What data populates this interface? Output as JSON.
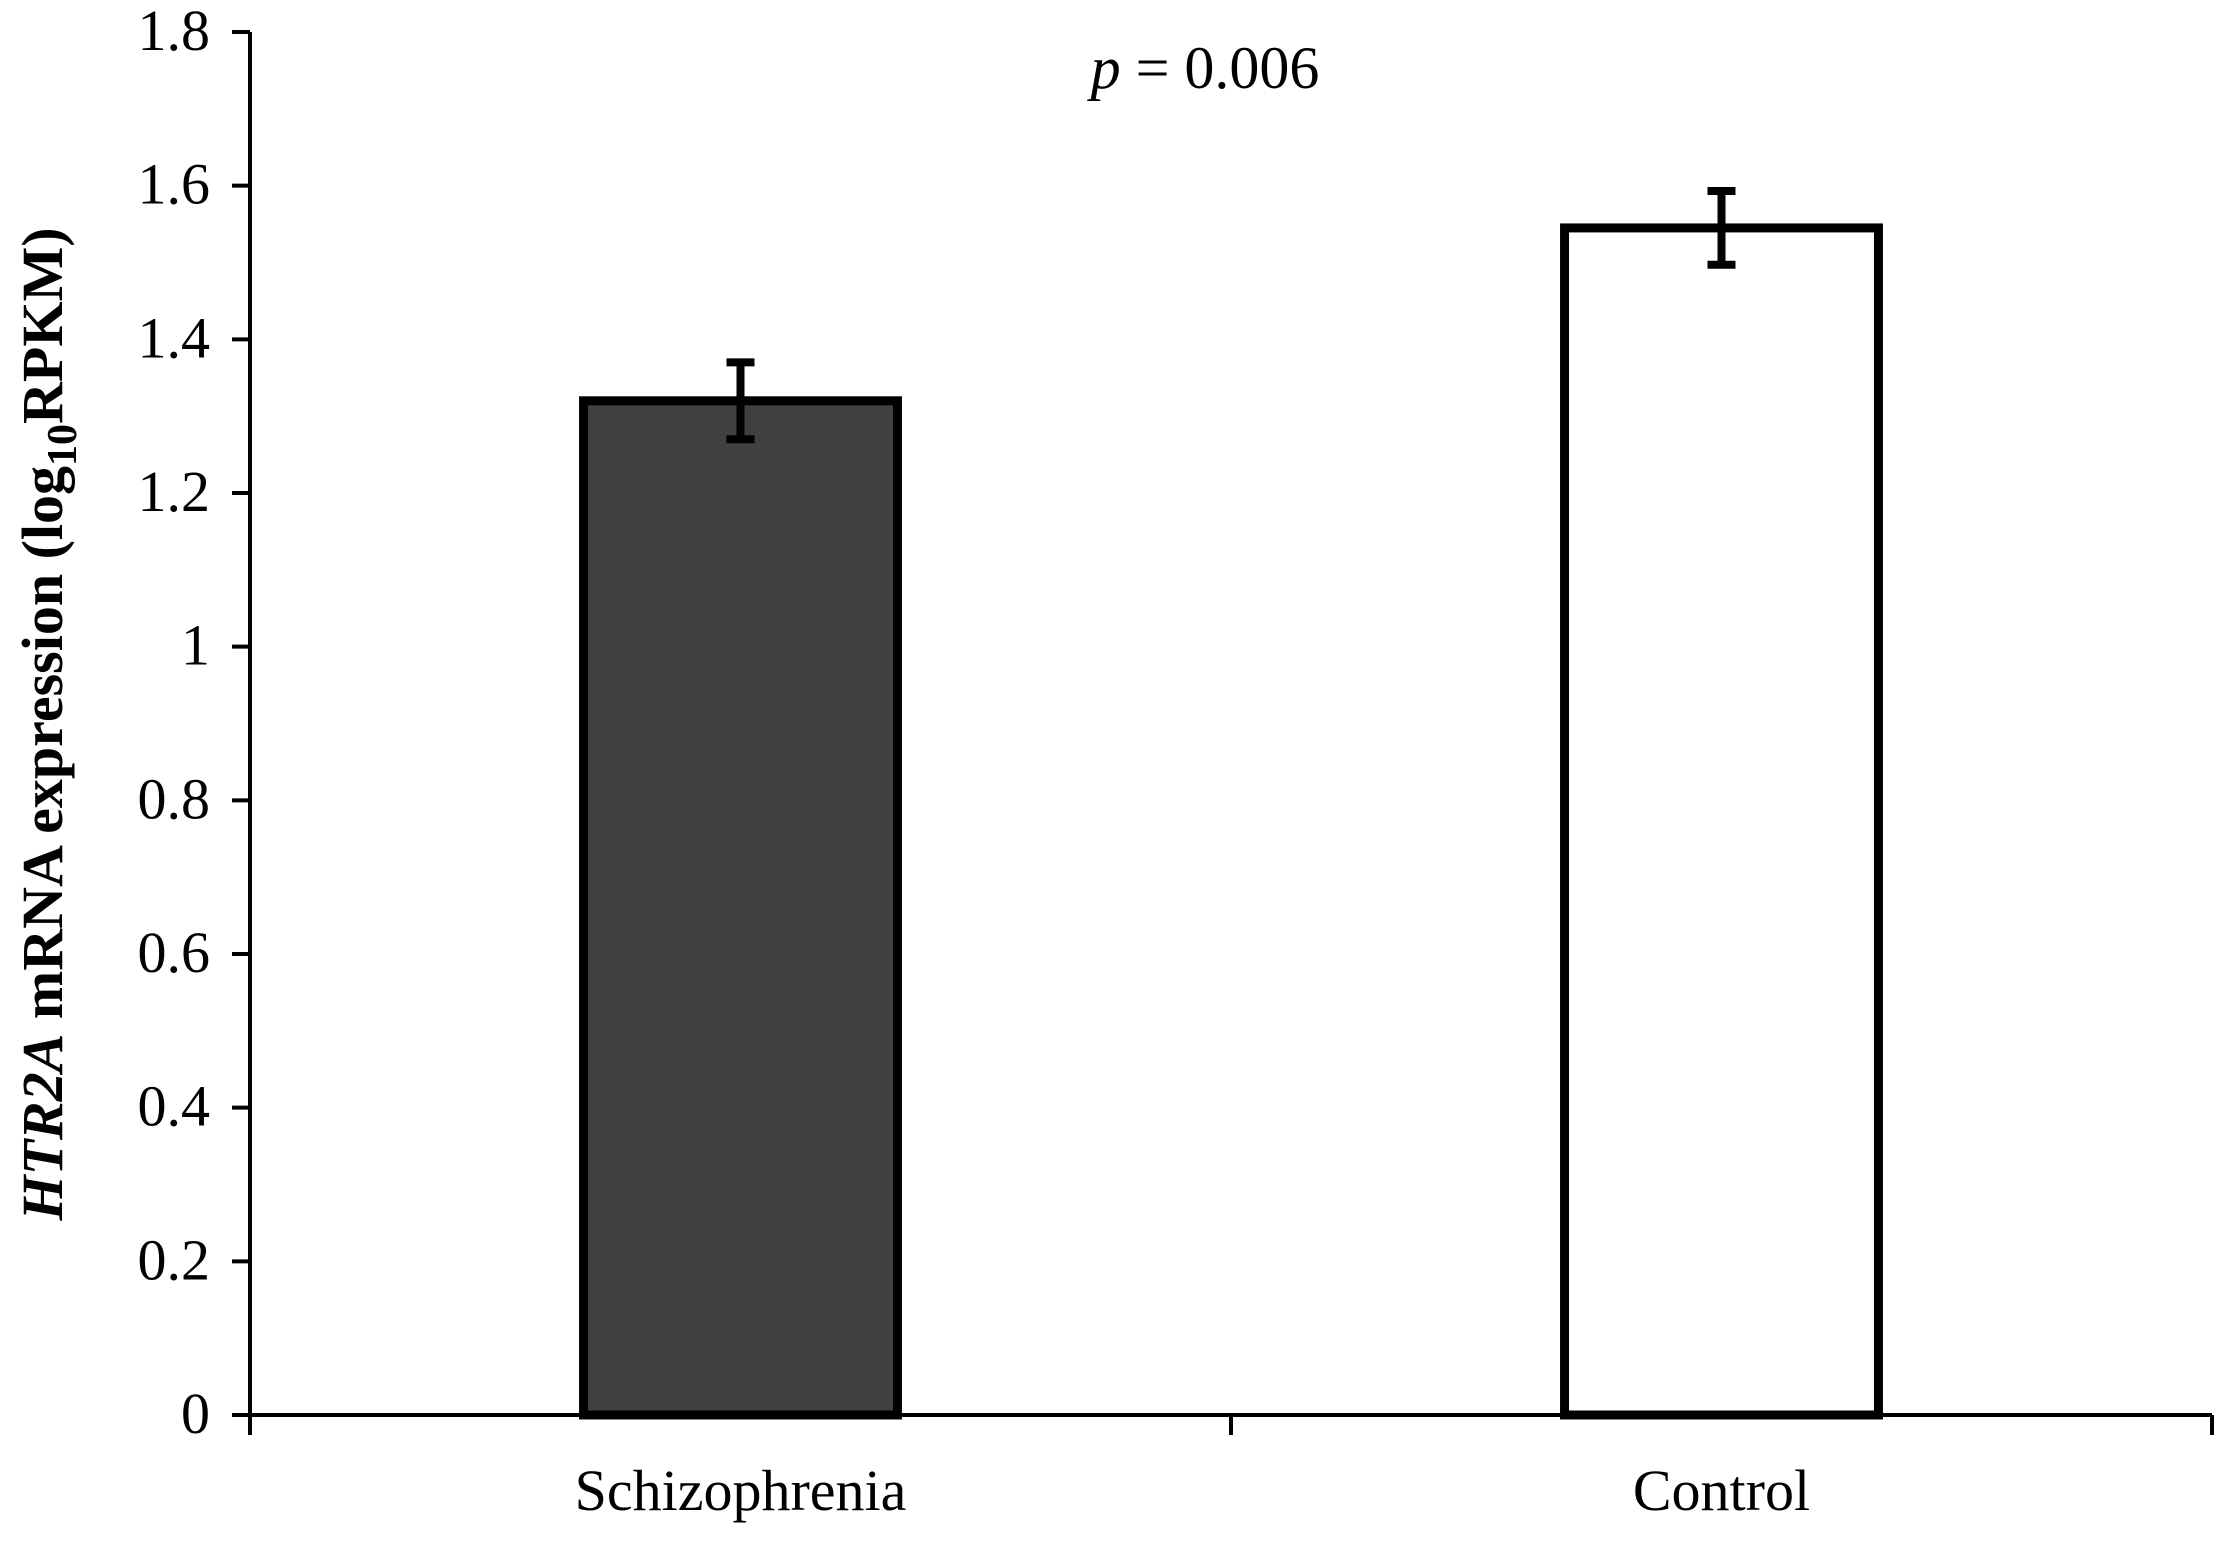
{
  "chart_data": {
    "type": "bar",
    "categories": [
      "Schizophrenia",
      "Control"
    ],
    "values": [
      1.32,
      1.545
    ],
    "error": [
      0.05,
      0.048
    ],
    "bar_colors": [
      "#404040",
      "#ffffff"
    ],
    "bar_edge_color": "#000000",
    "ylim": [
      0,
      1.8
    ],
    "yticks": [
      "0",
      "0.2",
      "0.4",
      "0.6",
      "0.8",
      "1",
      "1.2",
      "1.4",
      "1.6",
      "1.8"
    ],
    "ylabel": {
      "gene": "HTR2A",
      "text": " mRNA expression (log",
      "subscript": "10",
      "unit": "RPKM)"
    },
    "xlabel": "",
    "annotation": {
      "p_symbol": "p",
      "p_text": " = 0.006"
    },
    "grid": false,
    "legend": "none"
  }
}
